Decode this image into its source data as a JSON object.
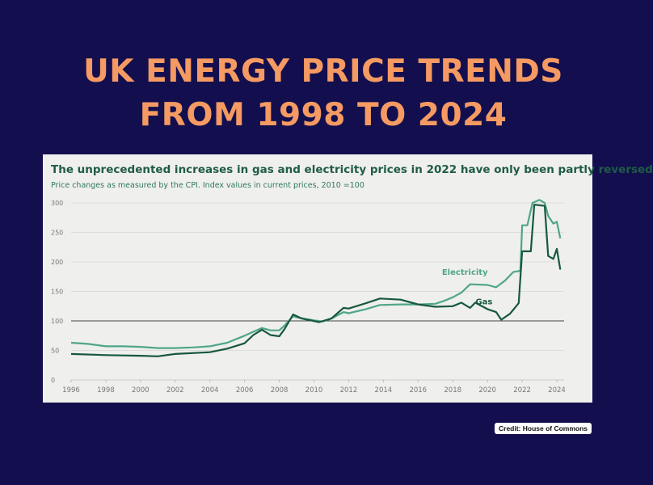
{
  "title_line1": "UK ENERGY PRICE TRENDS",
  "title_line2": "FROM 1998 TO 2024",
  "credit": "Credit: House of Commons",
  "chart_data": {
    "type": "line",
    "title": "The unprecedented increases in gas and electricity prices in 2022 have only been partly reversed",
    "subtitle": "Price changes as measured by the CPI. Index values in current prices, 2010 =100",
    "xlim": [
      1996,
      2024.4
    ],
    "ylim": [
      0,
      300
    ],
    "x_ticks": [
      "1996",
      "1998",
      "2000",
      "2002",
      "2004",
      "2006",
      "2008",
      "2010",
      "2012",
      "2014",
      "2016",
      "2018",
      "2020",
      "2022",
      "2024"
    ],
    "y_ticks": [
      "0",
      "50",
      "100",
      "150",
      "200",
      "250",
      "300"
    ],
    "reference_line": 100,
    "grid": true,
    "series": [
      {
        "name": "Electricity",
        "color": "#4fa68a",
        "points": [
          [
            1996,
            63
          ],
          [
            1997,
            61
          ],
          [
            1998,
            57
          ],
          [
            1999,
            57
          ],
          [
            2000,
            56
          ],
          [
            2001,
            54
          ],
          [
            2002,
            54
          ],
          [
            2003,
            55
          ],
          [
            2004,
            57
          ],
          [
            2005,
            63
          ],
          [
            2006,
            75
          ],
          [
            2007,
            88
          ],
          [
            2007.5,
            84
          ],
          [
            2008,
            84
          ],
          [
            2008.3,
            92
          ],
          [
            2008.8,
            108
          ],
          [
            2009,
            106
          ],
          [
            2010,
            101
          ],
          [
            2010.5,
            99
          ],
          [
            2011,
            104
          ],
          [
            2011.7,
            115
          ],
          [
            2012,
            113
          ],
          [
            2013,
            120
          ],
          [
            2013.8,
            127
          ],
          [
            2015,
            128
          ],
          [
            2016,
            128
          ],
          [
            2017,
            129
          ],
          [
            2017.5,
            134
          ],
          [
            2018,
            140
          ],
          [
            2018.5,
            148
          ],
          [
            2019,
            162
          ],
          [
            2020,
            161
          ],
          [
            2020.5,
            157
          ],
          [
            2021,
            168
          ],
          [
            2021.5,
            183
          ],
          [
            2021.9,
            185
          ],
          [
            2022,
            262
          ],
          [
            2022.3,
            262
          ],
          [
            2022.6,
            300
          ],
          [
            2023,
            305
          ],
          [
            2023.3,
            300
          ],
          [
            2023.5,
            278
          ],
          [
            2023.8,
            265
          ],
          [
            2024,
            268
          ],
          [
            2024.2,
            240
          ]
        ]
      },
      {
        "name": "Gas",
        "color": "#17583d",
        "points": [
          [
            1996,
            44
          ],
          [
            1998,
            42
          ],
          [
            2000,
            41
          ],
          [
            2001,
            40
          ],
          [
            2002,
            44
          ],
          [
            2004,
            47
          ],
          [
            2005,
            53
          ],
          [
            2006,
            62
          ],
          [
            2006.5,
            76
          ],
          [
            2007,
            85
          ],
          [
            2007.5,
            76
          ],
          [
            2008,
            74
          ],
          [
            2008.3,
            86
          ],
          [
            2008.8,
            111
          ],
          [
            2009.3,
            104
          ],
          [
            2010.3,
            98
          ],
          [
            2011,
            104
          ],
          [
            2011.7,
            122
          ],
          [
            2012,
            121
          ],
          [
            2013,
            130
          ],
          [
            2013.8,
            138
          ],
          [
            2015,
            136
          ],
          [
            2016,
            128
          ],
          [
            2017,
            124
          ],
          [
            2018,
            125
          ],
          [
            2018.5,
            131
          ],
          [
            2019,
            122
          ],
          [
            2019.3,
            131
          ],
          [
            2020,
            120
          ],
          [
            2020.5,
            115
          ],
          [
            2020.8,
            102
          ],
          [
            2021.3,
            112
          ],
          [
            2021.8,
            130
          ],
          [
            2022,
            218
          ],
          [
            2022.5,
            218
          ],
          [
            2022.7,
            297
          ],
          [
            2023.3,
            295
          ],
          [
            2023.5,
            210
          ],
          [
            2023.8,
            205
          ],
          [
            2024,
            222
          ],
          [
            2024.2,
            187
          ]
        ]
      }
    ]
  }
}
